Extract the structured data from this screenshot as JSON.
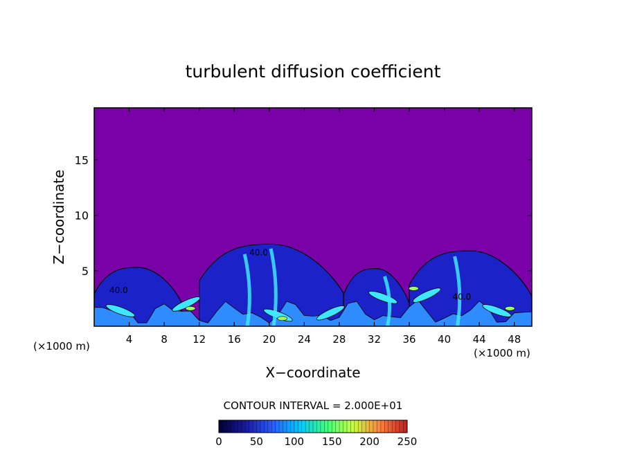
{
  "chart_data": {
    "type": "heatmap",
    "title": "turbulent diffusion coefficient",
    "xlabel": "X−coordinate",
    "ylabel": "Z−coordinate",
    "x_unit_left": "(×1000 m)",
    "x_unit_right": "(×1000 m)",
    "xlim": [
      0,
      50
    ],
    "ylim": [
      0,
      19.7
    ],
    "x_ticks": [
      "4",
      "8",
      "12",
      "16",
      "20",
      "24",
      "28",
      "32",
      "36",
      "40",
      "44",
      "48"
    ],
    "y_ticks": [
      "5",
      "10",
      "15"
    ],
    "contour_interval_label": "CONTOUR INTERVAL = 2.000E+01",
    "contour_interval": 20,
    "contour_labels": [
      {
        "text": "40.0",
        "x": 2.8,
        "z": 3.0
      },
      {
        "text": "40.0",
        "x": 18.8,
        "z": 6.4
      },
      {
        "text": "40.0",
        "x": 42.0,
        "z": 2.4
      }
    ],
    "colorbar": {
      "min": 0,
      "max": 250,
      "ticks": [
        "0",
        "50",
        "100",
        "150",
        "200",
        "250"
      ],
      "colors": [
        "#000033",
        "#1a1aa0",
        "#2a5cff",
        "#00c8ff",
        "#40ff80",
        "#c8ff40",
        "#ff8040",
        "#c02020"
      ]
    },
    "background_value": 0,
    "colors": {
      "background": "#7a00a8",
      "low": "#1a22c8",
      "mid": "#2f8cff",
      "high": "#3fe6ff",
      "peak": "#9cff60"
    },
    "regions": [
      {
        "x_start": 0.0,
        "x_end": 10.0,
        "top_z": 5.3
      },
      {
        "x_start": 12.0,
        "x_end": 28.5,
        "top_z": 7.4
      },
      {
        "x_start": 28.5,
        "x_end": 36.0,
        "top_z": 5.2
      },
      {
        "x_start": 36.0,
        "x_end": 50.0,
        "top_z": 6.8
      }
    ]
  }
}
